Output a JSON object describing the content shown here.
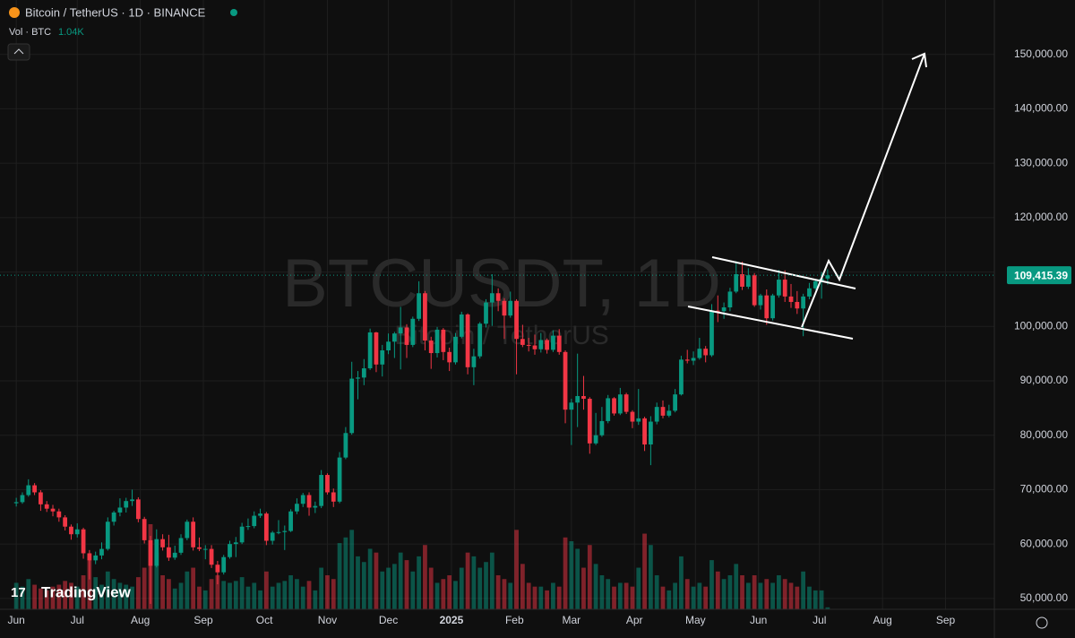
{
  "chart_data": {
    "type": "candlestick",
    "title": "Bitcoin / TetherUS · 1D · BINANCE",
    "volume_label": "Vol · BTC",
    "volume_last_label": "1.04K",
    "watermark": "BTCUSDT, 1D",
    "watermark_subtitle": "Bitcoin / TetherUS",
    "brand": "TradingView",
    "up_color": "#089981",
    "down_color": "#f23645",
    "grid": true,
    "xlim": [
      -8,
      481
    ],
    "xticks": [
      {
        "value": 0,
        "label": "Jun"
      },
      {
        "value": 30,
        "label": "Jul"
      },
      {
        "value": 61,
        "label": "Aug"
      },
      {
        "value": 92,
        "label": "Sep"
      },
      {
        "value": 122,
        "label": "Oct"
      },
      {
        "value": 153,
        "label": "Nov"
      },
      {
        "value": 183,
        "label": "Dec"
      },
      {
        "value": 214,
        "label": "2025"
      },
      {
        "value": 245,
        "label": "Feb"
      },
      {
        "value": 273,
        "label": "Mar"
      },
      {
        "value": 304,
        "label": "Apr"
      },
      {
        "value": 334,
        "label": "May"
      },
      {
        "value": 365,
        "label": "Jun"
      },
      {
        "value": 395,
        "label": "Jul"
      },
      {
        "value": 426,
        "label": "Aug"
      },
      {
        "value": 457,
        "label": "Sep"
      }
    ],
    "ylim": [
      48000,
      160000
    ],
    "yticks": [
      {
        "value": 50000,
        "label": "50,000.00"
      },
      {
        "value": 60000,
        "label": "60,000.00"
      },
      {
        "value": 70000,
        "label": "70,000.00"
      },
      {
        "value": 80000,
        "label": "80,000.00"
      },
      {
        "value": 90000,
        "label": "90,000.00"
      },
      {
        "value": 100000,
        "label": "100,000.00"
      },
      {
        "value": 110000,
        "label": "110,000.00"
      },
      {
        "value": 120000,
        "label": "120,000.00"
      },
      {
        "value": 130000,
        "label": "130,000.00"
      },
      {
        "value": 140000,
        "label": "140,000.00"
      },
      {
        "value": 150000,
        "label": "150,000.00"
      }
    ],
    "last_price": {
      "value": 109415.39,
      "label": "109,415.39"
    },
    "x": [
      0,
      3,
      6,
      9,
      12,
      15,
      18,
      21,
      24,
      27,
      30,
      33,
      36,
      39,
      42,
      45,
      48,
      51,
      54,
      57,
      60,
      63,
      66,
      69,
      72,
      75,
      78,
      81,
      84,
      87,
      90,
      93,
      96,
      99,
      102,
      105,
      108,
      111,
      114,
      117,
      120,
      123,
      126,
      129,
      132,
      135,
      138,
      141,
      144,
      147,
      150,
      153,
      156,
      159,
      162,
      165,
      168,
      171,
      174,
      177,
      180,
      183,
      186,
      189,
      192,
      195,
      198,
      201,
      204,
      207,
      210,
      213,
      216,
      219,
      222,
      225,
      228,
      231,
      234,
      237,
      240,
      243,
      246,
      249,
      252,
      255,
      258,
      261,
      264,
      267,
      270,
      273,
      276,
      279,
      282,
      285,
      288,
      291,
      294,
      297,
      300,
      303,
      306,
      309,
      312,
      315,
      318,
      321,
      324,
      327,
      330,
      333,
      336,
      339,
      342,
      345,
      348,
      351,
      354,
      357,
      360,
      363,
      366,
      369,
      372,
      375,
      378,
      381,
      384,
      387,
      390,
      393,
      396,
      399
    ],
    "candles": [
      [
        67500,
        68500,
        66900,
        67700
      ],
      [
        67700,
        69500,
        67400,
        69000
      ],
      [
        69000,
        71900,
        68700,
        70800
      ],
      [
        70800,
        71200,
        69000,
        69500
      ],
      [
        69500,
        69900,
        66100,
        67300
      ],
      [
        67300,
        67900,
        65900,
        66500
      ],
      [
        66500,
        67200,
        65100,
        66000
      ],
      [
        66000,
        66500,
        64100,
        64900
      ],
      [
        64900,
        65300,
        62500,
        63200
      ],
      [
        63200,
        63600,
        60800,
        61800
      ],
      [
        61800,
        63800,
        61200,
        62700
      ],
      [
        62700,
        63000,
        57300,
        58300
      ],
      [
        58300,
        58900,
        53500,
        57000
      ],
      [
        57000,
        58600,
        56300,
        57900
      ],
      [
        57900,
        60300,
        57200,
        59100
      ],
      [
        59100,
        64900,
        58800,
        64100
      ],
      [
        64100,
        66100,
        63400,
        65800
      ],
      [
        65800,
        68400,
        65100,
        66700
      ],
      [
        66700,
        68500,
        65800,
        67900
      ],
      [
        67900,
        70000,
        67000,
        68200
      ],
      [
        68200,
        68600,
        64000,
        64600
      ],
      [
        64600,
        65000,
        60100,
        60700
      ],
      [
        60700,
        61500,
        49000,
        56000
      ],
      [
        56000,
        62700,
        55700,
        60900
      ],
      [
        60900,
        61800,
        58800,
        59400
      ],
      [
        59400,
        61700,
        56900,
        57500
      ],
      [
        57500,
        59700,
        57100,
        58400
      ],
      [
        58400,
        61800,
        58000,
        61100
      ],
      [
        61100,
        64500,
        60700,
        64100
      ],
      [
        64100,
        64900,
        58800,
        59400
      ],
      [
        59400,
        61200,
        58700,
        59100
      ],
      [
        59100,
        59800,
        57200,
        59100
      ],
      [
        59100,
        59800,
        55600,
        56200
      ],
      [
        56200,
        56900,
        52600,
        54800
      ],
      [
        54800,
        58000,
        54400,
        57600
      ],
      [
        57600,
        60600,
        57300,
        60000
      ],
      [
        60000,
        61300,
        57600,
        60300
      ],
      [
        60300,
        63900,
        60000,
        63200
      ],
      [
        63200,
        64700,
        62600,
        63300
      ],
      [
        63300,
        66000,
        62900,
        65200
      ],
      [
        65200,
        66500,
        64800,
        65600
      ],
      [
        65600,
        65900,
        59800,
        60600
      ],
      [
        60600,
        62400,
        59900,
        62100
      ],
      [
        62100,
        64400,
        61800,
        62200
      ],
      [
        62200,
        63400,
        58900,
        62400
      ],
      [
        62400,
        66400,
        62200,
        66000
      ],
      [
        66000,
        68400,
        65500,
        67400
      ],
      [
        67400,
        69400,
        66800,
        69000
      ],
      [
        69000,
        69500,
        65200,
        66700
      ],
      [
        66700,
        67800,
        65700,
        67000
      ],
      [
        67000,
        73600,
        66600,
        72700
      ],
      [
        72700,
        73000,
        69100,
        69500
      ],
      [
        69500,
        70200,
        66800,
        67800
      ],
      [
        67800,
        76900,
        67500,
        75900
      ],
      [
        75900,
        81500,
        75600,
        80400
      ],
      [
        80400,
        93500,
        80100,
        90400
      ],
      [
        90400,
        91800,
        86600,
        90600
      ],
      [
        90600,
        94000,
        89200,
        92300
      ],
      [
        92300,
        99600,
        92000,
        98900
      ],
      [
        98900,
        99000,
        91600,
        93000
      ],
      [
        93000,
        96600,
        90800,
        95600
      ],
      [
        95600,
        98700,
        94900,
        97200
      ],
      [
        97200,
        99000,
        94200,
        98700
      ],
      [
        98700,
        103600,
        92100,
        99800
      ],
      [
        99800,
        100400,
        94200,
        96600
      ],
      [
        96600,
        101800,
        96200,
        101400
      ],
      [
        101400,
        108300,
        101000,
        106100
      ],
      [
        106100,
        106500,
        95600,
        97400
      ],
      [
        97400,
        98100,
        92200,
        95100
      ],
      [
        95100,
        99900,
        94300,
        99400
      ],
      [
        99400,
        99700,
        93800,
        95300
      ],
      [
        95300,
        96100,
        91800,
        93400
      ],
      [
        93400,
        98800,
        93000,
        98100
      ],
      [
        98100,
        102700,
        97800,
        102200
      ],
      [
        102200,
        102400,
        91200,
        92500
      ],
      [
        92500,
        95900,
        89200,
        94500
      ],
      [
        94500,
        100800,
        94100,
        100500
      ],
      [
        100500,
        105000,
        99800,
        104400
      ],
      [
        104400,
        109600,
        100100,
        106100
      ],
      [
        106100,
        107000,
        102800,
        104700
      ],
      [
        104700,
        105200,
        97700,
        102000
      ],
      [
        102000,
        106400,
        101600,
        104700
      ],
      [
        104700,
        105000,
        91200,
        97700
      ],
      [
        97700,
        100300,
        96200,
        96600
      ],
      [
        96600,
        97900,
        95400,
        96500
      ],
      [
        96500,
        98500,
        94800,
        95800
      ],
      [
        95800,
        98800,
        95200,
        97500
      ],
      [
        97500,
        97800,
        95000,
        95700
      ],
      [
        95700,
        99300,
        95300,
        98300
      ],
      [
        98300,
        99500,
        94800,
        95300
      ],
      [
        95300,
        95600,
        82200,
        84700
      ],
      [
        84700,
        86700,
        78200,
        86000
      ],
      [
        86000,
        95000,
        81500,
        87200
      ],
      [
        87200,
        90900,
        84700,
        86700
      ],
      [
        86700,
        87000,
        76600,
        78500
      ],
      [
        78500,
        84100,
        78200,
        80000
      ],
      [
        80000,
        85200,
        79700,
        82600
      ],
      [
        82600,
        87400,
        82200,
        86800
      ],
      [
        86800,
        87000,
        83600,
        84000
      ],
      [
        84000,
        88700,
        83700,
        87500
      ],
      [
        87500,
        87800,
        83900,
        84300
      ],
      [
        84300,
        84600,
        81300,
        82500
      ],
      [
        82500,
        88500,
        81900,
        83100
      ],
      [
        83100,
        83400,
        77100,
        78300
      ],
      [
        78300,
        83500,
        74500,
        82500
      ],
      [
        82500,
        86000,
        82000,
        85200
      ],
      [
        85200,
        86400,
        83100,
        83600
      ],
      [
        83600,
        85600,
        83300,
        84500
      ],
      [
        84500,
        88500,
        84200,
        87500
      ],
      [
        87500,
        94600,
        87300,
        93900
      ],
      [
        93900,
        95700,
        93200,
        93700
      ],
      [
        93700,
        95400,
        92900,
        94200
      ],
      [
        94200,
        97900,
        93900,
        95900
      ],
      [
        95900,
        96400,
        93400,
        94700
      ],
      [
        94700,
        104100,
        94400,
        102900
      ],
      [
        102900,
        105700,
        100800,
        102800
      ],
      [
        102800,
        104400,
        101400,
        103500
      ],
      [
        103500,
        107100,
        102800,
        106400
      ],
      [
        106400,
        112000,
        106100,
        109600
      ],
      [
        109600,
        111900,
        106700,
        107300
      ],
      [
        107300,
        110700,
        106900,
        109400
      ],
      [
        109400,
        109800,
        103600,
        103900
      ],
      [
        103900,
        106000,
        103100,
        105700
      ],
      [
        105700,
        106800,
        100300,
        101500
      ],
      [
        101500,
        106000,
        101100,
        105700
      ],
      [
        105700,
        110400,
        105300,
        108600
      ],
      [
        108600,
        110300,
        104500,
        105500
      ],
      [
        105500,
        107800,
        103400,
        104500
      ],
      [
        104500,
        106500,
        102300,
        103300
      ],
      [
        103300,
        106000,
        98200,
        105500
      ],
      [
        105500,
        108000,
        105000,
        107000
      ],
      [
        107000,
        108500,
        106700,
        108300
      ],
      [
        108300,
        110000,
        105100,
        108800
      ],
      [
        108800,
        110500,
        107700,
        109400
      ]
    ],
    "volume": [
      14,
      12,
      16,
      13,
      11,
      10,
      12,
      13,
      15,
      14,
      12,
      18,
      26,
      17,
      13,
      20,
      16,
      14,
      13,
      12,
      17,
      22,
      45,
      30,
      18,
      16,
      11,
      14,
      20,
      22,
      12,
      10,
      16,
      18,
      15,
      14,
      15,
      17,
      12,
      14,
      10,
      20,
      12,
      14,
      15,
      18,
      16,
      12,
      15,
      10,
      22,
      18,
      16,
      35,
      38,
      42,
      28,
      25,
      32,
      30,
      20,
      22,
      24,
      30,
      26,
      20,
      28,
      34,
      22,
      14,
      16,
      18,
      15,
      22,
      30,
      28,
      22,
      25,
      30,
      18,
      16,
      14,
      42,
      24,
      14,
      12,
      12,
      10,
      14,
      12,
      38,
      36,
      32,
      22,
      34,
      24,
      18,
      16,
      12,
      14,
      14,
      12,
      22,
      40,
      34,
      18,
      12,
      10,
      14,
      28,
      16,
      12,
      14,
      12,
      26,
      20,
      16,
      18,
      24,
      18,
      14,
      18,
      14,
      16,
      14,
      18,
      16,
      14,
      12,
      20,
      12,
      10,
      10,
      1.04
    ]
  }
}
